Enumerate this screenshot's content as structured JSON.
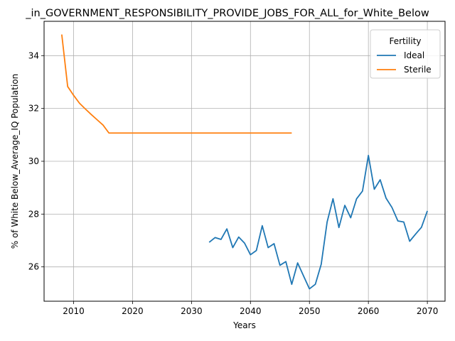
{
  "chart_data": {
    "type": "line",
    "title": "_in_GOVERNMENT_RESPONSIBILITY_PROVIDE_JOBS_FOR_ALL_for_White_Below",
    "xlabel": "Years",
    "ylabel": "% of White Below_Average_IQ Population",
    "xlim": [
      2005,
      2073
    ],
    "ylim": [
      24.7,
      35.3
    ],
    "xticks": [
      2010,
      2020,
      2030,
      2040,
      2050,
      2060,
      2070
    ],
    "yticks": [
      26,
      28,
      30,
      32,
      34
    ],
    "grid": true,
    "legend": {
      "title": "Fertility",
      "placement": "top-right"
    },
    "series": [
      {
        "name": "Ideal",
        "color": "#1f77b4",
        "x": [
          2033,
          2034,
          2035,
          2036,
          2037,
          2038,
          2039,
          2040,
          2041,
          2042,
          2043,
          2044,
          2045,
          2046,
          2047,
          2048,
          2049,
          2050,
          2051,
          2052,
          2053,
          2054,
          2055,
          2056,
          2057,
          2058,
          2059,
          2060,
          2061,
          2062,
          2063,
          2064,
          2065,
          2066,
          2067,
          2068,
          2069,
          2070
        ],
        "y": [
          26.93,
          27.11,
          27.04,
          27.44,
          26.73,
          27.13,
          26.9,
          26.46,
          26.62,
          27.56,
          26.73,
          26.88,
          26.06,
          26.2,
          25.34,
          26.15,
          25.66,
          25.17,
          25.34,
          26.1,
          27.7,
          28.58,
          27.49,
          28.33,
          27.86,
          28.58,
          28.87,
          30.22,
          28.94,
          29.3,
          28.6,
          28.25,
          27.74,
          27.7,
          26.97,
          27.24,
          27.5,
          28.12
        ]
      },
      {
        "name": "Sterile",
        "color": "#ff7f0e",
        "x": [
          2008,
          2009,
          2010,
          2011,
          2012,
          2013,
          2014,
          2015,
          2016,
          2017,
          2018,
          2019,
          2020,
          2021,
          2022,
          2023,
          2024,
          2025,
          2026,
          2027,
          2028,
          2029,
          2030,
          2031,
          2032,
          2033,
          2034,
          2035,
          2036,
          2037,
          2038,
          2039,
          2040,
          2041,
          2042,
          2043,
          2044,
          2045,
          2046,
          2047
        ],
        "y": [
          34.8,
          32.83,
          32.5,
          32.2,
          31.98,
          31.77,
          31.57,
          31.37,
          31.07,
          31.07,
          31.07,
          31.07,
          31.07,
          31.07,
          31.07,
          31.07,
          31.07,
          31.07,
          31.07,
          31.07,
          31.07,
          31.07,
          31.07,
          31.07,
          31.07,
          31.07,
          31.07,
          31.07,
          31.07,
          31.07,
          31.07,
          31.07,
          31.07,
          31.07,
          31.07,
          31.07,
          31.07,
          31.07,
          31.07,
          31.07
        ]
      }
    ]
  }
}
